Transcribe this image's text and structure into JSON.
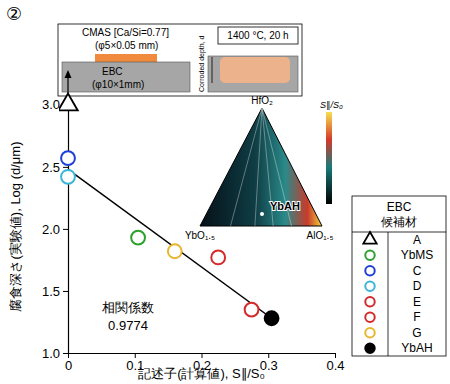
{
  "chart_data": {
    "type": "scatter",
    "panel_label": "②",
    "x_label": "記述子(計算値), S∥/S₀",
    "y_label": "腐食深さ(実験値), Log (d/μm)",
    "xlim": [
      0,
      0.4
    ],
    "xticks": [
      0,
      0.1,
      0.2,
      0.3,
      0.4
    ],
    "ylim": [
      1.0,
      3.2
    ],
    "yticks": [
      {
        "value": 1,
        "label": "1.0"
      },
      {
        "value": 1.5,
        "label": "1.5"
      },
      {
        "value": 2,
        "label": "2.0"
      },
      {
        "value": 2.5,
        "label": "2.5"
      },
      {
        "value": 3,
        "label": "3.0"
      }
    ],
    "legend": "right",
    "legend_title": [
      "EBC",
      "候補材"
    ],
    "series": [
      {
        "name": "A",
        "color": "#000000",
        "marker": "triangle",
        "x": [
          0
        ],
        "values": [
          3.0
        ]
      },
      {
        "name": "YbMS",
        "color": "#2ca02c",
        "marker": "circle",
        "x": [
          0.105
        ],
        "values": [
          1.93
        ]
      },
      {
        "name": "C",
        "color": "#1f3fd6",
        "marker": "circle",
        "x": [
          0
        ],
        "values": [
          2.57
        ]
      },
      {
        "name": "D",
        "color": "#3bb5d8",
        "marker": "circle",
        "x": [
          0
        ],
        "values": [
          2.42
        ]
      },
      {
        "name": "E",
        "color": "#d42a2a",
        "marker": "circle",
        "x": [
          0.225
        ],
        "values": [
          1.77
        ]
      },
      {
        "name": "F",
        "color": "#d42a2a",
        "marker": "circle",
        "x": [
          0.275
        ],
        "values": [
          1.35
        ]
      },
      {
        "name": "G",
        "color": "#e8b52c",
        "marker": "circle",
        "x": [
          0.16
        ],
        "values": [
          1.82
        ]
      },
      {
        "name": "YbAH",
        "color": "#000000",
        "marker": "filled-circle",
        "x": [
          0.305
        ],
        "values": [
          1.28
        ]
      }
    ],
    "trendline": {
      "x": [
        0,
        0.305
      ],
      "values": [
        2.48,
        1.28
      ],
      "color": "#000000"
    },
    "annotations": [
      "相関係数",
      "0.9774"
    ],
    "inset": {
      "cmas": "CMAS [Ca/Si=0.77]",
      "cmas_size": "(φ5×0.05 mm)",
      "ebc": "EBC",
      "ebc_size": "(φ10×1mm)",
      "condition": "1400 °C, 20 h",
      "depth": "Corroded depth, d"
    },
    "ternary": {
      "top": "HfO₂",
      "left": "YbO₁.₅",
      "right": "AlO₁.₅",
      "point": "YbAH",
      "colorbar_label": "S∥/S₀"
    }
  }
}
